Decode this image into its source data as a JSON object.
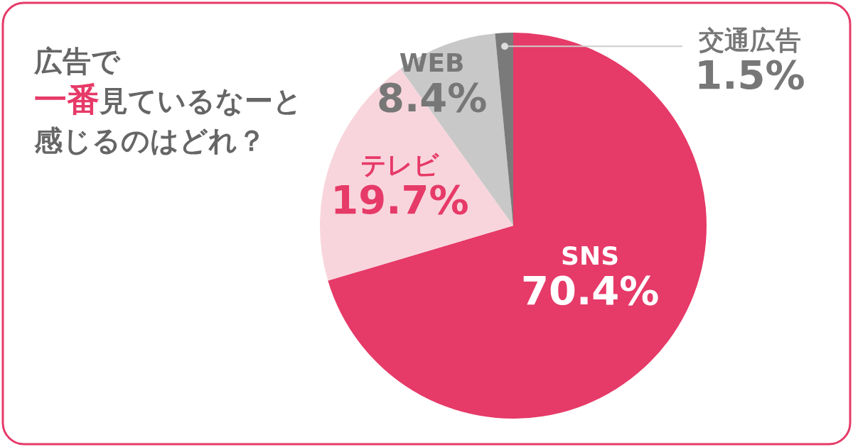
{
  "chart_data": {
    "type": "pie",
    "title": "広告で一番見ているなーと感じるのはどれ？",
    "categories": [
      "SNS",
      "テレビ",
      "WEB",
      "交通広告"
    ],
    "values": [
      70.4,
      19.7,
      8.4,
      1.5
    ],
    "value_labels": [
      "70.4%",
      "19.7%",
      "8.4%",
      "1.5%"
    ],
    "colors": [
      "#e63a68",
      "#f8d5dc",
      "#c8c8c8",
      "#7a7a7a"
    ]
  }
}
